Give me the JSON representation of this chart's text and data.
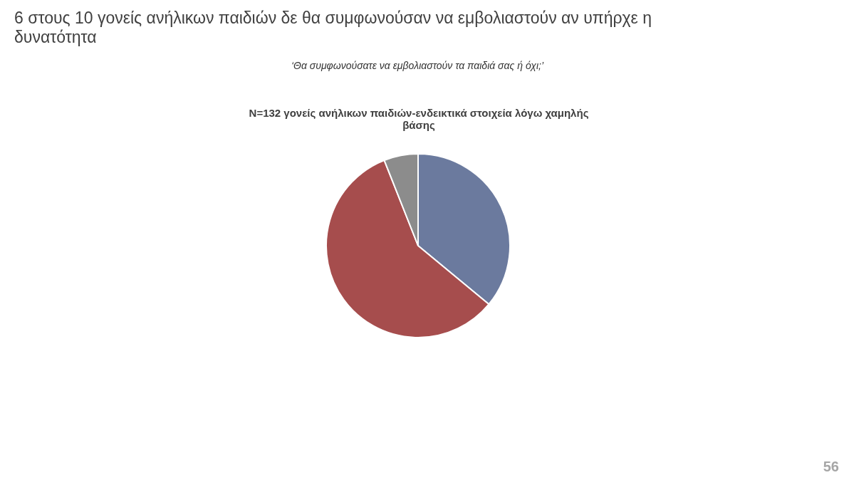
{
  "chart_data": {
    "type": "pie",
    "title": "6 στους 10 γονείς ανήλικων παιδιών δε θα συμφωνούσαν να εμβολιαστούν αν υπήρχε η δυνατότητα",
    "subtitle": "‘Θα συμφωνούσατε να εμβολιαστούν τα παιδιά σας ή όχι;’",
    "annotations": [
      "N=132 γονείς ανήλικων παιδιών-ενδεικτικά στοιχεία λόγω χαμηλής βάσης",
      "56"
    ],
    "categories": [
      null,
      null,
      null
    ],
    "values": [
      36,
      58,
      6
    ],
    "colors": [
      "#6b7a9e",
      "#a64d4d",
      "#8c8c8c"
    ],
    "legend": false
  }
}
